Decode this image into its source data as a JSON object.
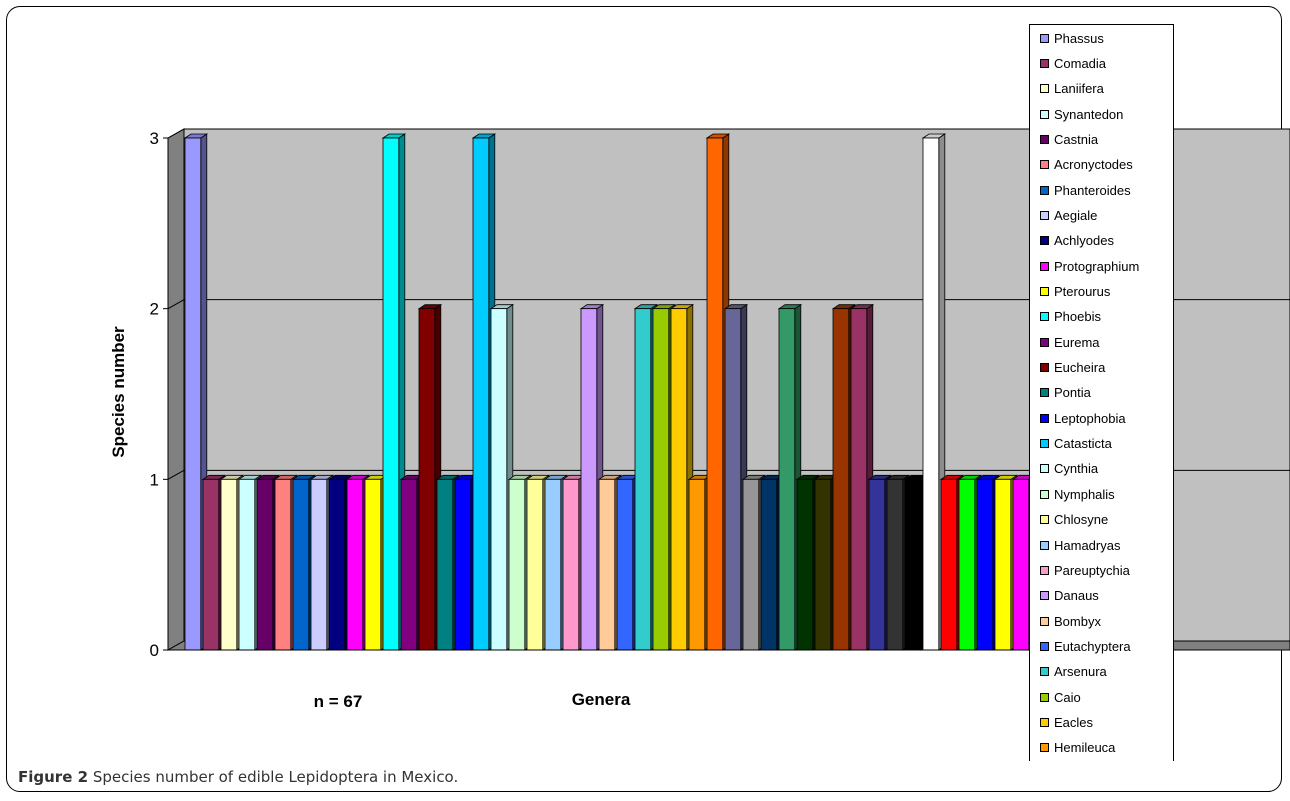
{
  "chart_data": {
    "type": "bar",
    "ylabel": "Species number",
    "xlabel": "Genera",
    "annotation": "n = 67",
    "ylim": [
      0,
      3
    ],
    "yticks": [
      "0",
      "1",
      "2",
      "3"
    ],
    "grid": true,
    "legend_position": "right",
    "series": [
      {
        "name": "Phassus",
        "value": 3,
        "color": "#9999FF"
      },
      {
        "name": "Comadia",
        "value": 1,
        "color": "#993366"
      },
      {
        "name": "Laniifera",
        "value": 1,
        "color": "#FFFFCC"
      },
      {
        "name": "Synantedon",
        "value": 1,
        "color": "#CCFFFF"
      },
      {
        "name": "Castnia",
        "value": 1,
        "color": "#660066"
      },
      {
        "name": "Acronyctodes",
        "value": 1,
        "color": "#FF8080"
      },
      {
        "name": "Phanteroides",
        "value": 1,
        "color": "#0066CC"
      },
      {
        "name": "Aegiale",
        "value": 1,
        "color": "#CCCCFF"
      },
      {
        "name": "Achlyodes",
        "value": 1,
        "color": "#000080"
      },
      {
        "name": "Protographium",
        "value": 1,
        "color": "#FF00FF"
      },
      {
        "name": "Pterourus",
        "value": 1,
        "color": "#FFFF00"
      },
      {
        "name": "Phoebis",
        "value": 3,
        "color": "#00FFFF"
      },
      {
        "name": "Eurema",
        "value": 1,
        "color": "#800080"
      },
      {
        "name": "Eucheira",
        "value": 2,
        "color": "#800000"
      },
      {
        "name": "Pontia",
        "value": 1,
        "color": "#008080"
      },
      {
        "name": "Leptophobia",
        "value": 1,
        "color": "#0000FF"
      },
      {
        "name": "Catasticta",
        "value": 3,
        "color": "#00CCFF"
      },
      {
        "name": "Cynthia",
        "value": 2,
        "color": "#CCFFFF"
      },
      {
        "name": "Nymphalis",
        "value": 1,
        "color": "#CCFFCC"
      },
      {
        "name": "Chlosyne",
        "value": 1,
        "color": "#FFFF99"
      },
      {
        "name": "Hamadryas",
        "value": 1,
        "color": "#99CCFF"
      },
      {
        "name": "Pareuptychia",
        "value": 1,
        "color": "#FF99CC"
      },
      {
        "name": "Danaus",
        "value": 2,
        "color": "#CC99FF"
      },
      {
        "name": "Bombyx",
        "value": 1,
        "color": "#FFCC99"
      },
      {
        "name": "Eutachyptera",
        "value": 1,
        "color": "#3366FF"
      },
      {
        "name": "Arsenura",
        "value": 2,
        "color": "#33CCCC"
      },
      {
        "name": "Caio",
        "value": 2,
        "color": "#99CC00"
      },
      {
        "name": "Eacles",
        "value": 2,
        "color": "#FFCC00"
      },
      {
        "name": "Hemileuca",
        "value": 1,
        "color": "#FF9900"
      },
      {
        "name": "",
        "value": 3,
        "color": "#FF6600"
      },
      {
        "name": "",
        "value": 2,
        "color": "#666699"
      },
      {
        "name": "",
        "value": 1,
        "color": "#969696"
      },
      {
        "name": "",
        "value": 1,
        "color": "#003366"
      },
      {
        "name": "",
        "value": 2,
        "color": "#339966"
      },
      {
        "name": "",
        "value": 1,
        "color": "#003300"
      },
      {
        "name": "",
        "value": 1,
        "color": "#333300"
      },
      {
        "name": "",
        "value": 2,
        "color": "#993300"
      },
      {
        "name": "",
        "value": 2,
        "color": "#993366"
      },
      {
        "name": "",
        "value": 1,
        "color": "#333399"
      },
      {
        "name": "",
        "value": 1,
        "color": "#333333"
      },
      {
        "name": "",
        "value": 1,
        "color": "#000000"
      },
      {
        "name": "",
        "value": 3,
        "color": "#FFFFFF"
      },
      {
        "name": "",
        "value": 1,
        "color": "#FF0000"
      },
      {
        "name": "",
        "value": 1,
        "color": "#00FF00"
      },
      {
        "name": "",
        "value": 1,
        "color": "#0000FF"
      },
      {
        "name": "",
        "value": 1,
        "color": "#FFFF00"
      },
      {
        "name": "",
        "value": 1,
        "color": "#FF00FF"
      }
    ],
    "colors": {
      "wall": "#C0C0C0",
      "floor": "#808080",
      "axis": "#000000"
    }
  },
  "caption": {
    "label": "Figure 2",
    "text": " Species number of edible Lepidoptera in Mexico."
  }
}
